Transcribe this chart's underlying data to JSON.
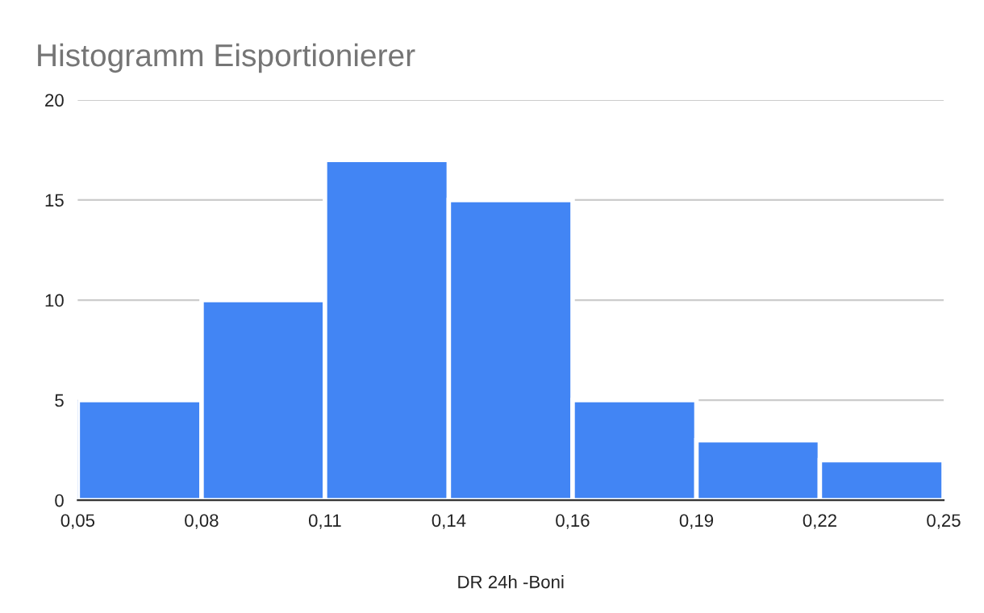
{
  "chart_data": {
    "type": "histogram",
    "title": "Histogramm Eisportionierer",
    "xlabel": "DR 24h -Boni",
    "bins": [
      0.05,
      0.0786,
      0.1071,
      0.1357,
      0.1643,
      0.1929,
      0.2214,
      0.25
    ],
    "values": [
      5,
      10,
      17,
      15,
      5,
      3,
      2
    ],
    "color": "#4285f4",
    "xlim": [
      0.05,
      0.25
    ],
    "xticks": [
      {
        "value": 0.05,
        "label": "0,05"
      },
      {
        "value": 0.0786,
        "label": "0,08"
      },
      {
        "value": 0.1071,
        "label": "0,11"
      },
      {
        "value": 0.1357,
        "label": "0,14"
      },
      {
        "value": 0.1643,
        "label": "0,16"
      },
      {
        "value": 0.1929,
        "label": "0,19"
      },
      {
        "value": 0.2214,
        "label": "0,22"
      },
      {
        "value": 0.25,
        "label": "0,25"
      }
    ],
    "ylim": [
      0,
      20
    ],
    "yticks": [
      0,
      5,
      10,
      15,
      20
    ],
    "grid": "y",
    "legend": false
  }
}
